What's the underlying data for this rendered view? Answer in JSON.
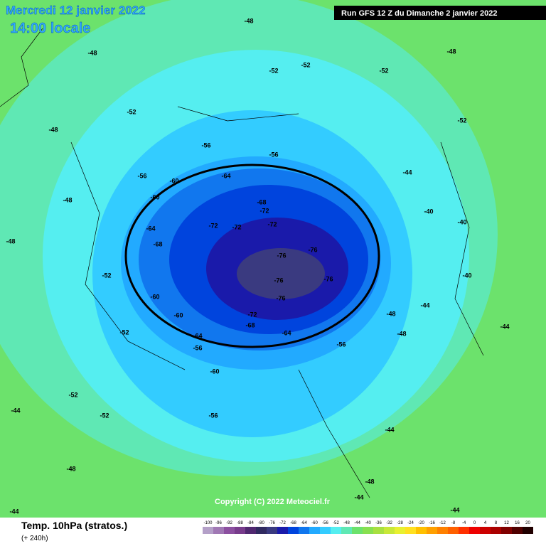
{
  "header": {
    "title": "Mercredi 12 janvier 2022",
    "time": "14:00 locale",
    "run": "Run GFS 12 Z du Dimanche 2 janvier 2022"
  },
  "copyright": "Copyright (C) 2022 Meteociel.fr",
  "footer": {
    "title": "Temp. 10hPa (stratos.)",
    "lead": "(+ 240h)"
  },
  "scale": {
    "values": [
      -100,
      -96,
      -92,
      -88,
      -84,
      -80,
      -76,
      -72,
      -68,
      -64,
      -60,
      -56,
      -52,
      -48,
      -44,
      -40,
      -36,
      -32,
      -28,
      -24,
      -20,
      -16,
      -12,
      -8,
      -4,
      0,
      4,
      8,
      12,
      16,
      20
    ],
    "colors": [
      "#b4a0c8",
      "#a078b4",
      "#8c50a0",
      "#783c8c",
      "#502870",
      "#302a60",
      "#3a3a80",
      "#1a1aaa",
      "#0044dd",
      "#1177ee",
      "#22aaff",
      "#33ccff",
      "#55eef0",
      "#5fe8b4",
      "#6ce26c",
      "#88e050",
      "#a8e040",
      "#c8e838",
      "#e8f030",
      "#ffe020",
      "#ffc000",
      "#ffa000",
      "#ff8000",
      "#ff6000",
      "#ff3000",
      "#ee0000",
      "#cc0000",
      "#aa0000",
      "#800000",
      "#500000",
      "#200000"
    ]
  },
  "contour_labels": [
    -48,
    -48,
    -52,
    -52,
    -52,
    -52,
    -48,
    -48,
    -52,
    -48,
    -48,
    -52,
    -52,
    -56,
    -56,
    -56,
    -60,
    -64,
    -60,
    -64,
    -68,
    -68,
    -72,
    -72,
    -72,
    -72,
    -76,
    -76,
    -76,
    -76,
    -76,
    -72,
    -68,
    -64,
    -64,
    -60,
    -60,
    -56,
    -56,
    -60,
    -56,
    -52,
    -52,
    -48,
    -44,
    -44,
    -44,
    -40,
    -40,
    -40,
    -44,
    -44,
    -48,
    -48,
    -44,
    -44,
    -48,
    -44
  ]
}
